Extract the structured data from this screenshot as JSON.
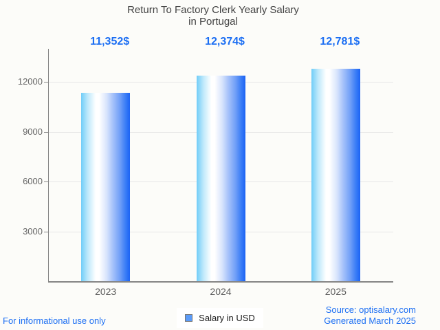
{
  "title": {
    "line1": "Return To Factory Clerk Yearly Salary",
    "line2": "in Portugal"
  },
  "chart_data": {
    "type": "bar",
    "title": "Return To Factory Clerk Yearly Salary in Portugal",
    "categories": [
      "2023",
      "2024",
      "2025"
    ],
    "values": [
      11352,
      12374,
      12781
    ],
    "value_labels": [
      "11,352$",
      "12,374$",
      "12,781$"
    ],
    "series_name": "Salary in USD",
    "xlabel": "",
    "ylabel": "",
    "yticks": [
      3000,
      6000,
      9000,
      12000
    ],
    "ylim": [
      0,
      14000
    ],
    "grid": true,
    "legend_position": "bottom"
  },
  "legend": {
    "label": "Salary in USD"
  },
  "footer": {
    "left": "For informational use only",
    "source": "Source: optisalary.com",
    "generated": "Generated March 2025"
  },
  "colors": {
    "background": "#fcfcf9",
    "accent_blue": "#1b6ef3",
    "title_color": "#424242",
    "axis_label_color": "#666666",
    "x_label_color": "#595959",
    "legend_text_color": "#1a1a1a",
    "gridline_color": "#e6e6e6",
    "axis_line_color": "#858585",
    "bar_left": "#70cdf8",
    "bar_right": "#1b63f4",
    "legend_swatch": "#5b9bf8"
  }
}
